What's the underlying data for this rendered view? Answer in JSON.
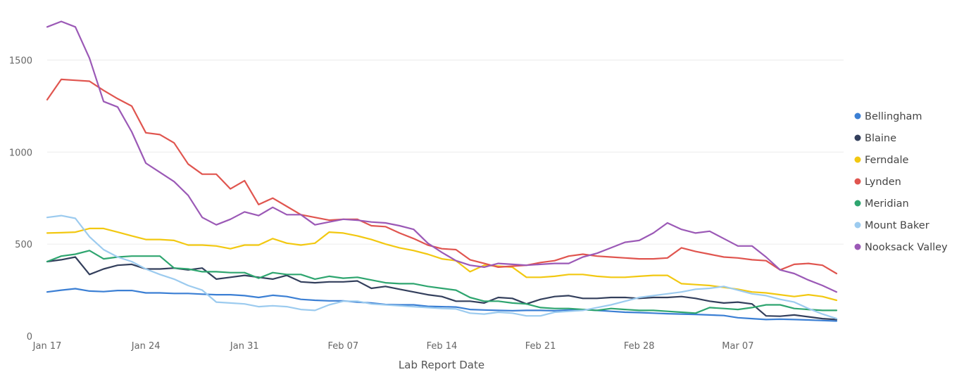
{
  "chart_data": {
    "type": "line",
    "xlabel": "Lab Report Date",
    "ylabel": "",
    "ylim": [
      0,
      1750
    ],
    "y_ticks": [
      "0",
      "500",
      "1000",
      "1500"
    ],
    "y_tick_values": [
      0,
      500,
      1000,
      1500
    ],
    "x_tick_labels": [
      "Jan 17",
      "Jan 24",
      "Jan 31",
      "Feb 07",
      "Feb 14",
      "Feb 21",
      "Feb 28",
      "Mar 07"
    ],
    "x_tick_dates": [
      "2022-01-17",
      "2022-01-24",
      "2022-01-31",
      "2022-02-07",
      "2022-02-14",
      "2022-02-21",
      "2022-02-28",
      "2022-03-07"
    ],
    "x_dates": [
      "2022-01-17",
      "2022-01-18",
      "2022-01-19",
      "2022-01-20",
      "2022-01-21",
      "2022-01-22",
      "2022-01-23",
      "2022-01-24",
      "2022-01-25",
      "2022-01-26",
      "2022-01-27",
      "2022-01-28",
      "2022-01-29",
      "2022-01-30",
      "2022-01-31",
      "2022-02-01",
      "2022-02-02",
      "2022-02-03",
      "2022-02-04",
      "2022-02-05",
      "2022-02-06",
      "2022-02-07",
      "2022-02-08",
      "2022-02-09",
      "2022-02-10",
      "2022-02-11",
      "2022-02-12",
      "2022-02-13",
      "2022-02-14",
      "2022-02-15",
      "2022-02-16",
      "2022-02-17",
      "2022-02-18",
      "2022-02-19",
      "2022-02-20",
      "2022-02-21",
      "2022-02-22",
      "2022-02-23",
      "2022-02-24",
      "2022-02-25",
      "2022-02-26",
      "2022-02-27",
      "2022-02-28",
      "2022-03-01",
      "2022-03-02",
      "2022-03-03",
      "2022-03-04",
      "2022-03-05",
      "2022-03-06",
      "2022-03-07",
      "2022-03-08",
      "2022-03-09",
      "2022-03-10",
      "2022-03-11",
      "2022-03-12",
      "2022-03-13",
      "2022-03-14"
    ],
    "legend_position": "right",
    "grid": true,
    "series": [
      {
        "name": "Bellingham",
        "color": "#3b7fd4",
        "values": [
          240,
          250,
          258,
          245,
          242,
          248,
          248,
          235,
          235,
          232,
          232,
          228,
          225,
          225,
          220,
          210,
          222,
          215,
          200,
          195,
          192,
          192,
          185,
          180,
          172,
          170,
          170,
          162,
          160,
          158,
          145,
          142,
          140,
          138,
          140,
          140,
          138,
          142,
          145,
          140,
          135,
          130,
          128,
          125,
          122,
          120,
          118,
          115,
          112,
          100,
          95,
          90,
          92,
          90,
          88,
          85,
          82
        ]
      },
      {
        "name": "Blaine",
        "color": "#333f5c",
        "values": [
          405,
          415,
          430,
          335,
          365,
          385,
          390,
          365,
          365,
          370,
          360,
          370,
          310,
          320,
          330,
          320,
          310,
          330,
          295,
          290,
          295,
          295,
          300,
          260,
          270,
          255,
          240,
          225,
          215,
          190,
          190,
          180,
          210,
          205,
          175,
          200,
          215,
          220,
          205,
          205,
          210,
          210,
          205,
          210,
          210,
          215,
          205,
          190,
          180,
          185,
          175,
          110,
          108,
          115,
          105,
          95,
          90
        ]
      },
      {
        "name": "Ferndale",
        "color": "#f2c811",
        "values": [
          560,
          562,
          565,
          585,
          585,
          565,
          545,
          525,
          525,
          520,
          495,
          495,
          490,
          475,
          495,
          495,
          530,
          505,
          495,
          505,
          565,
          560,
          545,
          525,
          500,
          480,
          465,
          445,
          420,
          410,
          350,
          385,
          380,
          375,
          320,
          320,
          325,
          335,
          335,
          325,
          320,
          320,
          325,
          330,
          330,
          285,
          280,
          275,
          265,
          255,
          240,
          235,
          225,
          215,
          225,
          215,
          195
        ]
      },
      {
        "name": "Lynden",
        "color": "#e0554f",
        "values": [
          1285,
          1395,
          1390,
          1385,
          1335,
          1290,
          1250,
          1105,
          1095,
          1050,
          935,
          880,
          880,
          800,
          845,
          715,
          750,
          705,
          660,
          645,
          630,
          635,
          635,
          600,
          595,
          560,
          530,
          495,
          475,
          470,
          415,
          395,
          375,
          380,
          385,
          400,
          410,
          435,
          445,
          435,
          430,
          425,
          420,
          420,
          425,
          480,
          460,
          445,
          430,
          425,
          415,
          410,
          360,
          390,
          395,
          385,
          340
        ]
      },
      {
        "name": "Meridian",
        "color": "#2ea56f",
        "values": [
          405,
          435,
          445,
          465,
          420,
          430,
          435,
          435,
          435,
          370,
          365,
          350,
          350,
          345,
          345,
          315,
          345,
          335,
          335,
          310,
          325,
          315,
          320,
          305,
          290,
          285,
          285,
          270,
          260,
          250,
          210,
          190,
          190,
          180,
          175,
          155,
          150,
          150,
          145,
          140,
          150,
          145,
          140,
          140,
          135,
          130,
          125,
          155,
          150,
          145,
          155,
          170,
          170,
          150,
          145,
          140,
          140
        ]
      },
      {
        "name": "Mount Baker",
        "color": "#9ccbef",
        "values": [
          645,
          655,
          640,
          540,
          470,
          430,
          405,
          365,
          335,
          310,
          275,
          250,
          185,
          180,
          175,
          160,
          165,
          160,
          145,
          140,
          170,
          190,
          190,
          175,
          170,
          165,
          160,
          155,
          150,
          148,
          125,
          120,
          130,
          125,
          110,
          110,
          130,
          135,
          140,
          155,
          170,
          190,
          210,
          220,
          230,
          240,
          255,
          260,
          270,
          250,
          230,
          220,
          200,
          185,
          150,
          120,
          95
        ]
      },
      {
        "name": "Nooksack Valley",
        "color": "#9b59b6",
        "values": [
          1680,
          1710,
          1680,
          1510,
          1275,
          1245,
          1110,
          940,
          890,
          840,
          765,
          645,
          605,
          635,
          675,
          655,
          700,
          660,
          660,
          605,
          620,
          635,
          630,
          620,
          615,
          600,
          580,
          505,
          455,
          410,
          385,
          375,
          395,
          390,
          385,
          390,
          395,
          395,
          430,
          450,
          480,
          510,
          520,
          560,
          615,
          580,
          560,
          570,
          530,
          490,
          490,
          430,
          360,
          340,
          305,
          275,
          240
        ]
      }
    ]
  }
}
